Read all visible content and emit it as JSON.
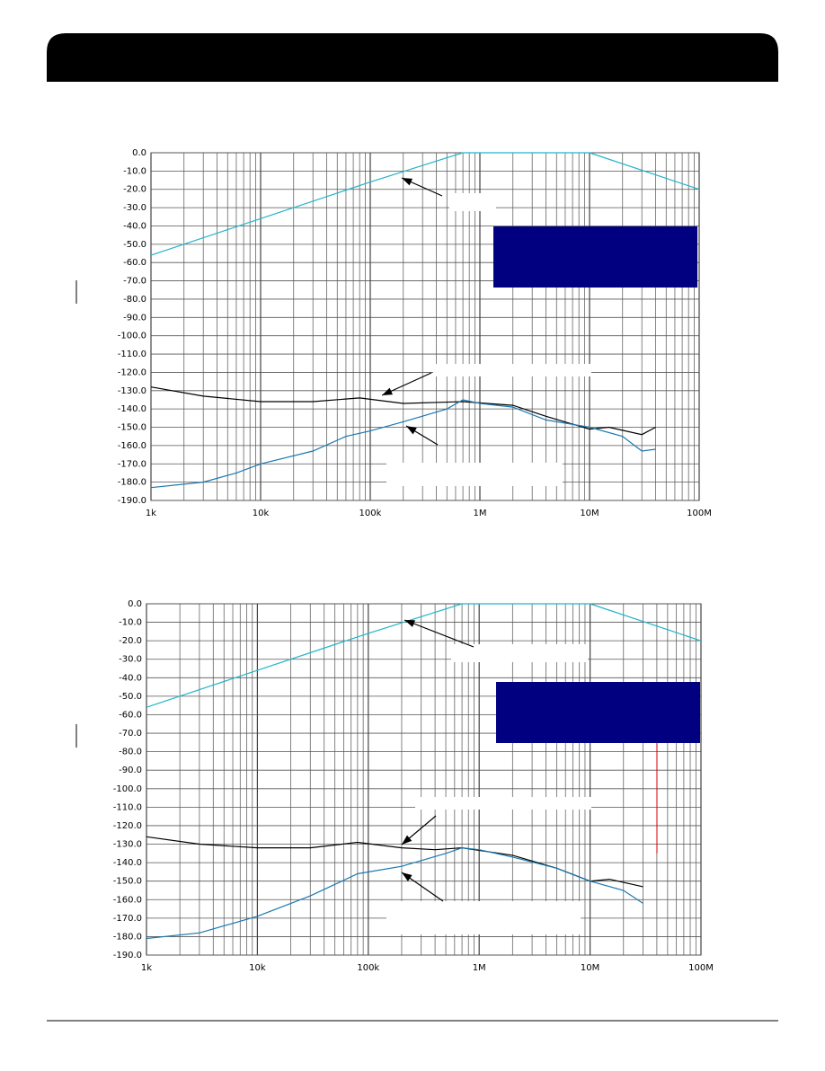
{
  "chart_data": [
    {
      "type": "line",
      "xscale": "log",
      "grid": true,
      "minor_grid": true,
      "xlim": [
        1000,
        100000000
      ],
      "ylim": [
        -190,
        0
      ],
      "xticks": [
        {
          "value": 1000,
          "label": "1k"
        },
        {
          "value": 10000,
          "label": "10k"
        },
        {
          "value": 100000,
          "label": "100k"
        },
        {
          "value": 1000000,
          "label": "1M"
        },
        {
          "value": 10000000,
          "label": "10M"
        },
        {
          "value": 100000000,
          "label": "100M"
        }
      ],
      "yticks": [
        {
          "value": 0,
          "label": "0.0"
        },
        {
          "value": -10,
          "label": "-10.0"
        },
        {
          "value": -20,
          "label": "-20.0"
        },
        {
          "value": -30,
          "label": "-30.0"
        },
        {
          "value": -40,
          "label": "-40.0"
        },
        {
          "value": -50,
          "label": "-50.0"
        },
        {
          "value": -60,
          "label": "-60.0"
        },
        {
          "value": -70,
          "label": "-70.0"
        },
        {
          "value": -80,
          "label": "-80.0"
        },
        {
          "value": -90,
          "label": "-90.0"
        },
        {
          "value": -100,
          "label": "-100.0"
        },
        {
          "value": -110,
          "label": "-110.0"
        },
        {
          "value": -120,
          "label": "-120.0"
        },
        {
          "value": -130,
          "label": "-130.0"
        },
        {
          "value": -140,
          "label": "-140.0"
        },
        {
          "value": -150,
          "label": "-150.0"
        },
        {
          "value": -160,
          "label": "-160.0"
        },
        {
          "value": -170,
          "label": "-170.0"
        },
        {
          "value": -180,
          "label": "-180.0"
        },
        {
          "value": -190,
          "label": "-190.0"
        }
      ],
      "series": [
        {
          "color": "#22b5c9",
          "x": [
            1000,
            10000,
            100000,
            700000,
            10000000,
            100000000
          ],
          "values": [
            -56,
            -36,
            -16,
            0,
            0,
            -20
          ]
        },
        {
          "color": "#000000",
          "x": [
            1000,
            3000,
            10000,
            30000,
            80000,
            200000,
            700000,
            2000000,
            4000000,
            10000000,
            15000000,
            30000000,
            40000000
          ],
          "values": [
            -128,
            -133,
            -136,
            -136,
            -134,
            -137,
            -136,
            -138,
            -144,
            -151,
            -150,
            -154,
            -150
          ]
        },
        {
          "color": "#1a78b0",
          "x": [
            1000,
            3000,
            6000,
            10000,
            30000,
            60000,
            100000,
            200000,
            500000,
            700000,
            1000000,
            2000000,
            4000000,
            10000000,
            20000000,
            30000000,
            40000000
          ],
          "values": [
            -183,
            -180,
            -175,
            -170,
            -163,
            -155,
            -152,
            -147,
            -140,
            -135,
            -137,
            -139,
            -146,
            -150,
            -155,
            -163,
            -162
          ]
        }
      ]
    },
    {
      "type": "line",
      "xscale": "log",
      "grid": true,
      "minor_grid": true,
      "xlim": [
        1000,
        100000000
      ],
      "ylim": [
        -190,
        0
      ],
      "xticks": [
        {
          "value": 1000,
          "label": "1k"
        },
        {
          "value": 10000,
          "label": "10k"
        },
        {
          "value": 100000,
          "label": "100k"
        },
        {
          "value": 1000000,
          "label": "1M"
        },
        {
          "value": 10000000,
          "label": "10M"
        },
        {
          "value": 100000000,
          "label": "100M"
        }
      ],
      "yticks": [
        {
          "value": 0,
          "label": "0.0"
        },
        {
          "value": -10,
          "label": "-10.0"
        },
        {
          "value": -20,
          "label": "-20.0"
        },
        {
          "value": -30,
          "label": "-30.0"
        },
        {
          "value": -40,
          "label": "-40.0"
        },
        {
          "value": -50,
          "label": "-50.0"
        },
        {
          "value": -60,
          "label": "-60.0"
        },
        {
          "value": -70,
          "label": "-70.0"
        },
        {
          "value": -80,
          "label": "-80.0"
        },
        {
          "value": -90,
          "label": "-90.0"
        },
        {
          "value": -100,
          "label": "-100.0"
        },
        {
          "value": -110,
          "label": "-110.0"
        },
        {
          "value": -120,
          "label": "-120.0"
        },
        {
          "value": -130,
          "label": "-130.0"
        },
        {
          "value": -140,
          "label": "-140.0"
        },
        {
          "value": -150,
          "label": "-150.0"
        },
        {
          "value": -160,
          "label": "-160.0"
        },
        {
          "value": -170,
          "label": "-170.0"
        },
        {
          "value": -180,
          "label": "-180.0"
        },
        {
          "value": -190,
          "label": "-190.0"
        }
      ],
      "series": [
        {
          "color": "#22b5c9",
          "x": [
            1000,
            10000,
            100000,
            700000,
            10000000,
            100000000
          ],
          "values": [
            -56,
            -36,
            -16,
            0,
            0,
            -20
          ]
        },
        {
          "color": "#000000",
          "x": [
            1000,
            3000,
            10000,
            30000,
            80000,
            200000,
            400000,
            700000,
            2000000,
            5000000,
            10000000,
            15000000,
            30000000
          ],
          "values": [
            -126,
            -130,
            -132,
            -132,
            -129,
            -132,
            -133,
            -132,
            -136,
            -143,
            -150,
            -149,
            -153
          ]
        },
        {
          "color": "#1a78b0",
          "x": [
            1000,
            3000,
            10000,
            30000,
            80000,
            200000,
            500000,
            700000,
            1000000,
            2000000,
            5000000,
            10000000,
            20000000,
            30000000
          ],
          "values": [
            -181,
            -178,
            -169,
            -158,
            -146,
            -142,
            -135,
            -132,
            -133,
            -137,
            -143,
            -150,
            -155,
            -162
          ]
        }
      ]
    }
  ]
}
